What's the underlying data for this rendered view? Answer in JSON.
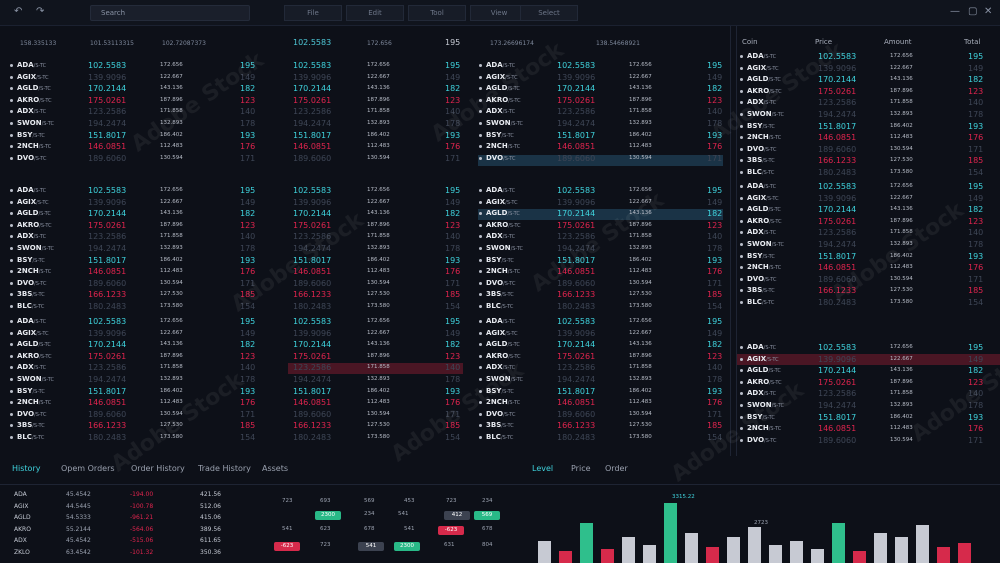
{
  "window": {
    "search_placeholder": "Search",
    "menu": [
      "File",
      "Edit",
      "Tool",
      "View",
      "Select"
    ],
    "controls": [
      "—",
      "▢",
      "✕"
    ]
  },
  "header": {
    "n1": "158.335133",
    "n2": "101.53113315",
    "n3": "102.72087373",
    "big1": "102.5583",
    "amt1": "172.656",
    "cnt1": "195",
    "n4": "173.26696174",
    "n5": "138.54668921"
  },
  "pair_suffix": "/S-TC",
  "rows": [
    {
      "sym": "ADA",
      "price": "102.5583",
      "amt": "172.656",
      "tot": "195",
      "color": "cyan"
    },
    {
      "sym": "AGIX",
      "price": "139.9096",
      "amt": "122.667",
      "tot": "149",
      "color": "dim"
    },
    {
      "sym": "AGLD",
      "price": "170.2144",
      "amt": "143.136",
      "tot": "182",
      "color": "cyan"
    },
    {
      "sym": "AKRO",
      "price": "175.0261",
      "amt": "187.896",
      "tot": "123",
      "color": "red"
    },
    {
      "sym": "ADX",
      "price": "123.2586",
      "amt": "171.858",
      "tot": "140",
      "color": "dim"
    },
    {
      "sym": "SWON",
      "price": "194.2474",
      "amt": "132.893",
      "tot": "178",
      "color": "dim"
    },
    {
      "sym": "BSY",
      "price": "151.8017",
      "amt": "186.402",
      "tot": "193",
      "color": "cyan"
    },
    {
      "sym": "2NCH",
      "price": "146.0851",
      "amt": "112.483",
      "tot": "176",
      "color": "red"
    },
    {
      "sym": "DVO",
      "price": "189.6060",
      "amt": "130.594",
      "tot": "171",
      "color": "dim"
    },
    {
      "sym": "3BS",
      "price": "166.1233",
      "amt": "127.530",
      "tot": "185",
      "color": "red"
    },
    {
      "sym": "BLC",
      "price": "180.2483",
      "amt": "173.580",
      "tot": "154",
      "color": "dim"
    }
  ],
  "right_panel": {
    "headers": [
      "Coin",
      "Price",
      "Amount",
      "Total"
    ]
  },
  "bottom": {
    "tabs_left": [
      "History",
      "Opem Orders",
      "Order History",
      "Trade History",
      "Assets"
    ],
    "tabs_right": [
      "Level",
      "Price",
      "Order"
    ],
    "history": [
      {
        "name": "ADA",
        "a": "45.4542",
        "b": "-194.00",
        "c": "421.56"
      },
      {
        "name": "AGIX",
        "a": "44.5445",
        "b": "-100.78",
        "c": "512.06"
      },
      {
        "name": "AGLD",
        "a": "54.5333",
        "b": "-961.21",
        "c": "415.06"
      },
      {
        "name": "AKRO",
        "a": "55.2144",
        "b": "-564.06",
        "c": "389.56"
      },
      {
        "name": "ADX",
        "a": "45.4542",
        "b": "-515.06",
        "c": "611.65"
      },
      {
        "name": "ZKLO",
        "a": "63.4542",
        "b": "-101.32",
        "c": "350.36"
      }
    ],
    "pills_row1": [
      "723",
      "693",
      "569",
      "453",
      "723",
      "234"
    ],
    "pills_row1b": [
      "2300",
      "234",
      "541",
      "412",
      "569"
    ],
    "pills_row2": [
      "541",
      "623",
      "678",
      "541",
      "-623",
      "678"
    ],
    "pills_row3": [
      "-623",
      "723",
      "541",
      "2300",
      "631",
      "804"
    ],
    "chart_labels": [
      "3315.22",
      "2723"
    ],
    "chart_bars": [
      {
        "h": 22,
        "c": "#c7cad3"
      },
      {
        "h": 12,
        "c": "#d62a4b"
      },
      {
        "h": 40,
        "c": "#2fbf8c"
      },
      {
        "h": 14,
        "c": "#d62a4b"
      },
      {
        "h": 26,
        "c": "#c7cad3"
      },
      {
        "h": 18,
        "c": "#c7cad3"
      },
      {
        "h": 60,
        "c": "#2fbf8c"
      },
      {
        "h": 30,
        "c": "#c7cad3"
      },
      {
        "h": 16,
        "c": "#d62a4b"
      },
      {
        "h": 26,
        "c": "#c7cad3"
      },
      {
        "h": 36,
        "c": "#c7cad3"
      },
      {
        "h": 18,
        "c": "#c7cad3"
      },
      {
        "h": 22,
        "c": "#c7cad3"
      },
      {
        "h": 14,
        "c": "#c7cad3"
      },
      {
        "h": 40,
        "c": "#2fbf8c"
      },
      {
        "h": 12,
        "c": "#d62a4b"
      },
      {
        "h": 30,
        "c": "#c7cad3"
      },
      {
        "h": 26,
        "c": "#c7cad3"
      },
      {
        "h": 38,
        "c": "#c7cad3"
      },
      {
        "h": 16,
        "c": "#d62a4b"
      },
      {
        "h": 20,
        "c": "#d62a4b"
      }
    ]
  },
  "overlay": {
    "stock_id": "Adobe Stock | #540366480",
    "watermark": "Adobe Stock"
  }
}
